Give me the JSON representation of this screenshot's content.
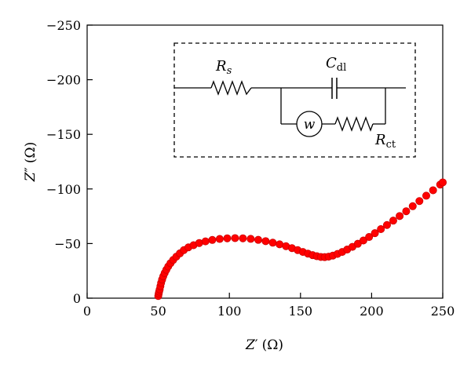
{
  "chart_data": {
    "type": "scatter",
    "title": "",
    "xlabel": {
      "symbol": "Z",
      "prime": "′",
      "unit": "(Ω)"
    },
    "ylabel": {
      "symbol": "Z",
      "prime": "″",
      "unit": "(Ω)"
    },
    "xlim": [
      0,
      250
    ],
    "ylim": [
      0,
      -250
    ],
    "x_inverted": false,
    "y_inverted": true,
    "xticks": [
      0,
      50,
      100,
      150,
      200,
      250
    ],
    "xtick_labels": [
      "0",
      "50",
      "100",
      "150",
      "200",
      "250"
    ],
    "yticks": [
      0,
      -50,
      -100,
      -150,
      -200,
      -250
    ],
    "ytick_labels": [
      "0",
      "−50",
      "−100",
      "−150",
      "−200",
      "−250"
    ],
    "grid": false,
    "legend": "none",
    "marker_color": "#ff0000",
    "marker_edge_color": "#cc0000",
    "series": [
      {
        "x": [
          50.0,
          50.3,
          50.6,
          51.0,
          51.5,
          52.0,
          52.7,
          53.5,
          54.5,
          55.7,
          57.0,
          58.6,
          60.5,
          62.7,
          65.2,
          68.0,
          71.2,
          74.8,
          78.8,
          83.2,
          88.0,
          93.2,
          98.5,
          104.0,
          109.5,
          115.0,
          120.3,
          125.5,
          130.5,
          135.3,
          139.8,
          144.0,
          148.0,
          151.7,
          155.2,
          158.5,
          161.5,
          164.3,
          167.0,
          169.8,
          172.8,
          176.0,
          179.3,
          182.8,
          186.5,
          190.3,
          194.2,
          198.2,
          202.3,
          206.5,
          210.8,
          215.2,
          219.7,
          224.3,
          228.9,
          233.6,
          238.4,
          243.2,
          248.2,
          250.0
        ],
        "y": [
          -2,
          -4,
          -6,
          -8,
          -11,
          -14,
          -17,
          -20,
          -23,
          -26,
          -29,
          -32,
          -35,
          -38,
          -41,
          -44,
          -46.5,
          -48.5,
          -50.5,
          -52,
          -53.3,
          -54.2,
          -54.8,
          -55.0,
          -54.8,
          -54.3,
          -53.4,
          -52.2,
          -50.8,
          -49.3,
          -47.6,
          -45.8,
          -44.0,
          -42.3,
          -40.8,
          -39.4,
          -38.4,
          -37.7,
          -37.6,
          -38.0,
          -39.0,
          -40.5,
          -42.3,
          -44.5,
          -47.0,
          -49.8,
          -52.8,
          -56.0,
          -59.5,
          -63.2,
          -67.0,
          -71.0,
          -75.2,
          -79.6,
          -84.2,
          -88.9,
          -93.8,
          -98.8,
          -104.0,
          -106.0
        ]
      }
    ],
    "inset_circuit": {
      "labels": {
        "rs": {
          "main": "R",
          "sub": "s"
        },
        "cdl": {
          "main": "C",
          "sub": "dl"
        },
        "rct": {
          "main": "R",
          "sub": "ct"
        },
        "w": "w"
      }
    }
  }
}
